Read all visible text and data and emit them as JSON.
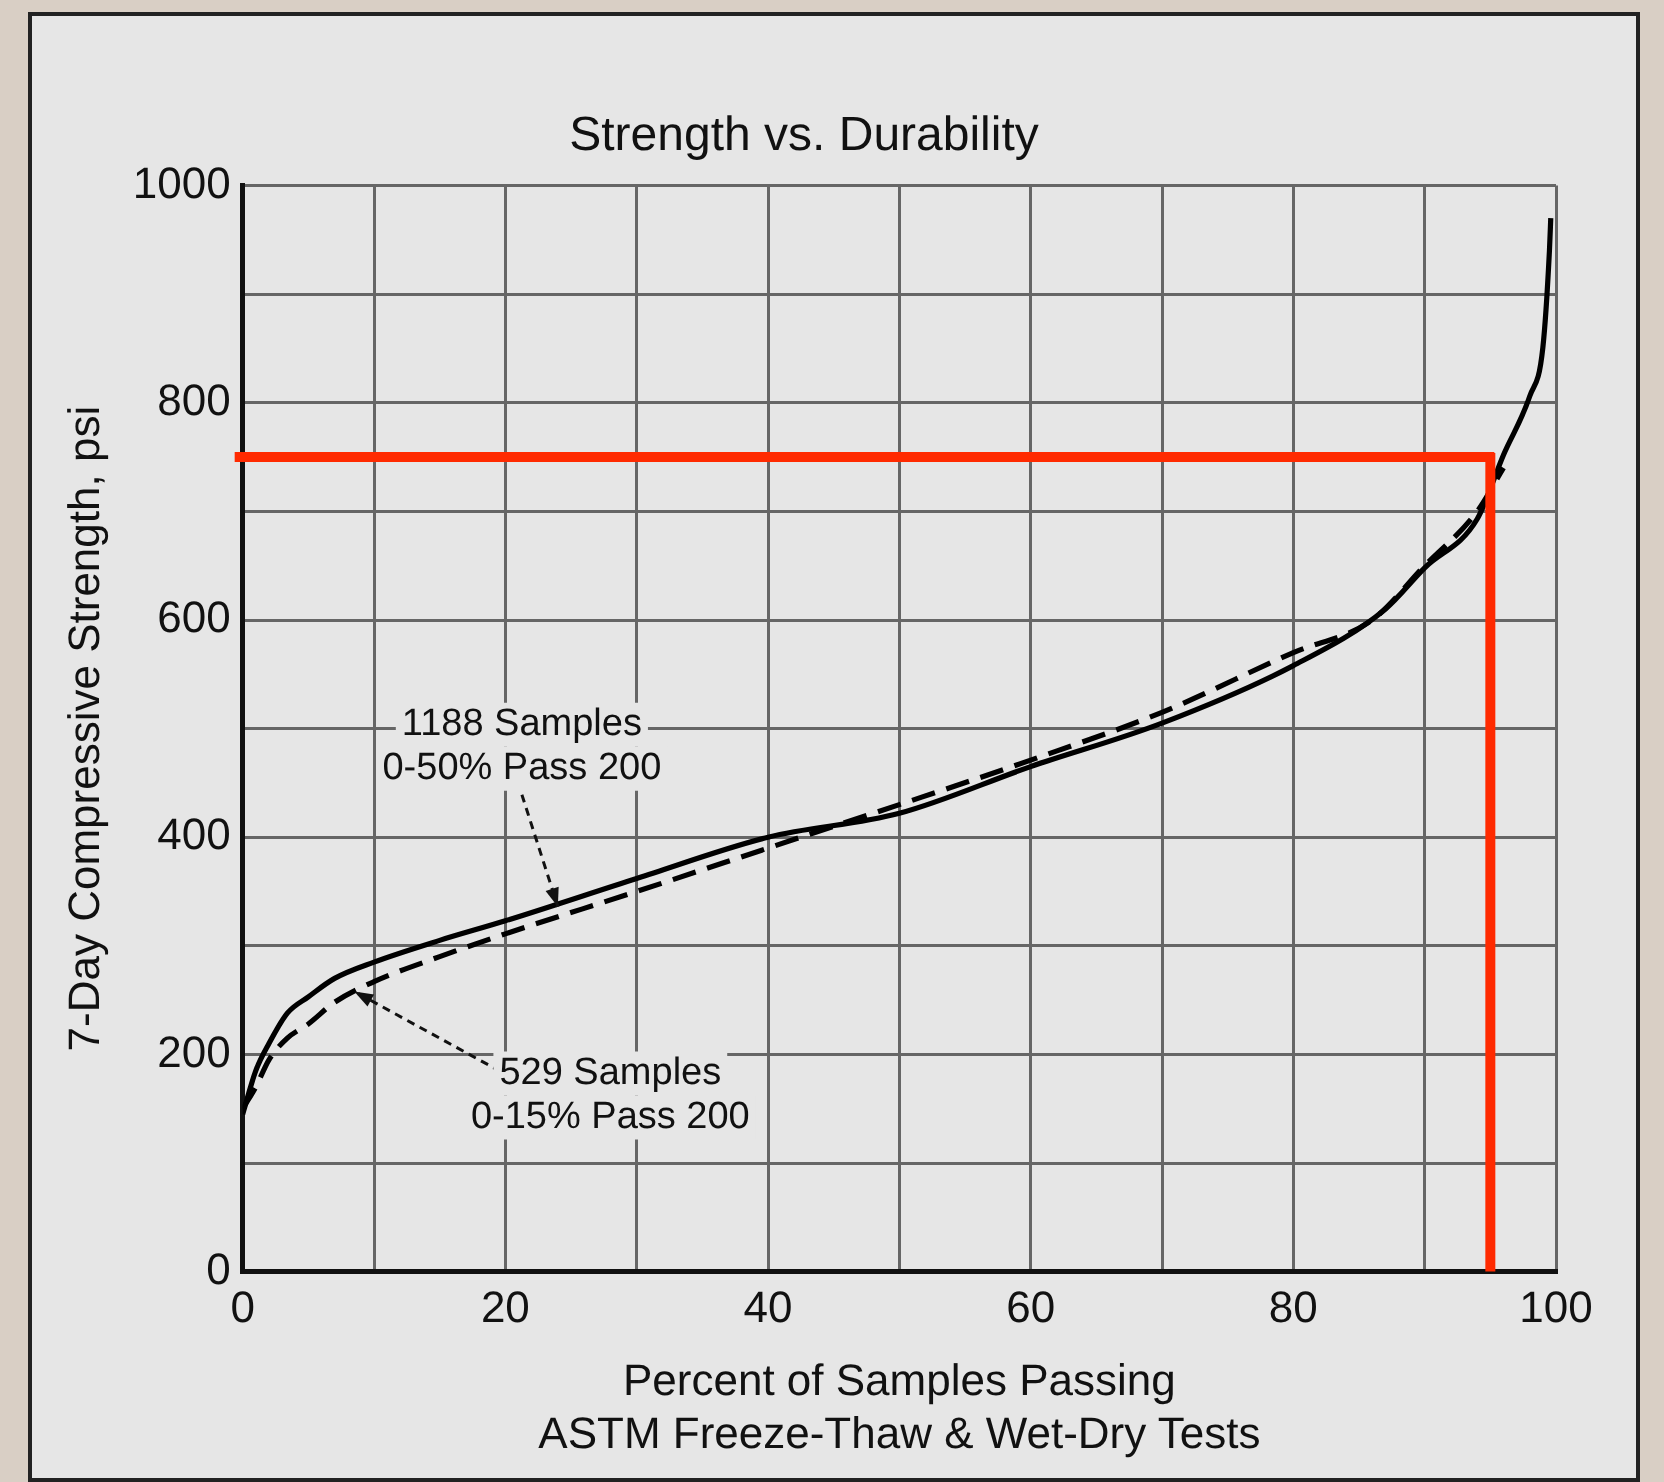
{
  "chart_data": {
    "type": "line",
    "title": "Strength vs. Durability",
    "xlabel": "Percent of Samples Passing\nASTM Freeze-Thaw & Wet-Dry Tests",
    "ylabel": "7-Day Compressive Strength, psi",
    "xlim": [
      0,
      100
    ],
    "ylim": [
      0,
      1000
    ],
    "xticks": [
      0,
      {
        "value": 10,
        "label": null
      },
      20,
      {
        "value": 30,
        "label": null
      },
      40,
      {
        "value": 50,
        "label": null
      },
      60,
      {
        "value": 70,
        "label": null
      },
      80,
      {
        "value": 90,
        "label": null
      },
      100
    ],
    "yticks": [
      0,
      {
        "value": 100,
        "label": null
      },
      200,
      {
        "value": 300,
        "label": null
      },
      400,
      {
        "value": 500,
        "label": null
      },
      600,
      {
        "value": 700,
        "label": null
      },
      800,
      {
        "value": 900,
        "label": null
      },
      1000
    ],
    "grid": true,
    "legend": false,
    "marker": "none",
    "series": [
      {
        "color": "#000000",
        "line_style": "solid",
        "x": [
          0,
          1,
          2,
          3.4,
          5,
          7,
          10,
          15,
          20,
          30,
          40,
          50,
          60,
          70,
          80,
          87,
          90,
          94,
          96,
          98,
          99,
          99.5,
          99.6
        ],
        "values": [
          145,
          185,
          210,
          238,
          253,
          270,
          285,
          305,
          323,
          362,
          400,
          422,
          465,
          505,
          558,
          610,
          648,
          693,
          752,
          806,
          851,
          940,
          970
        ]
      },
      {
        "color": "#000000",
        "line_style": "dashed",
        "x": [
          0,
          1,
          2,
          3.4,
          5,
          7,
          10,
          15,
          20,
          30,
          40,
          50,
          60,
          70,
          80,
          86,
          90,
          94,
          96
        ],
        "values": [
          150,
          170,
          195,
          215,
          228,
          248,
          267,
          290,
          311,
          350,
          390,
          430,
          471,
          515,
          570,
          600,
          650,
          700,
          740
        ]
      }
    ],
    "ref_lines": [
      {
        "axis": "y",
        "value": 750,
        "color": "#ff2a00"
      },
      {
        "axis": "x",
        "value": 95,
        "color": "#ff2a00"
      }
    ],
    "annotations": [
      {
        "text": "1188 Samples\n0-50% Pass 200",
        "x": 24,
        "y": 336
      },
      {
        "text": "529 Samples\n0-15% Pass 200",
        "x": 8.5,
        "y": 258
      }
    ]
  }
}
